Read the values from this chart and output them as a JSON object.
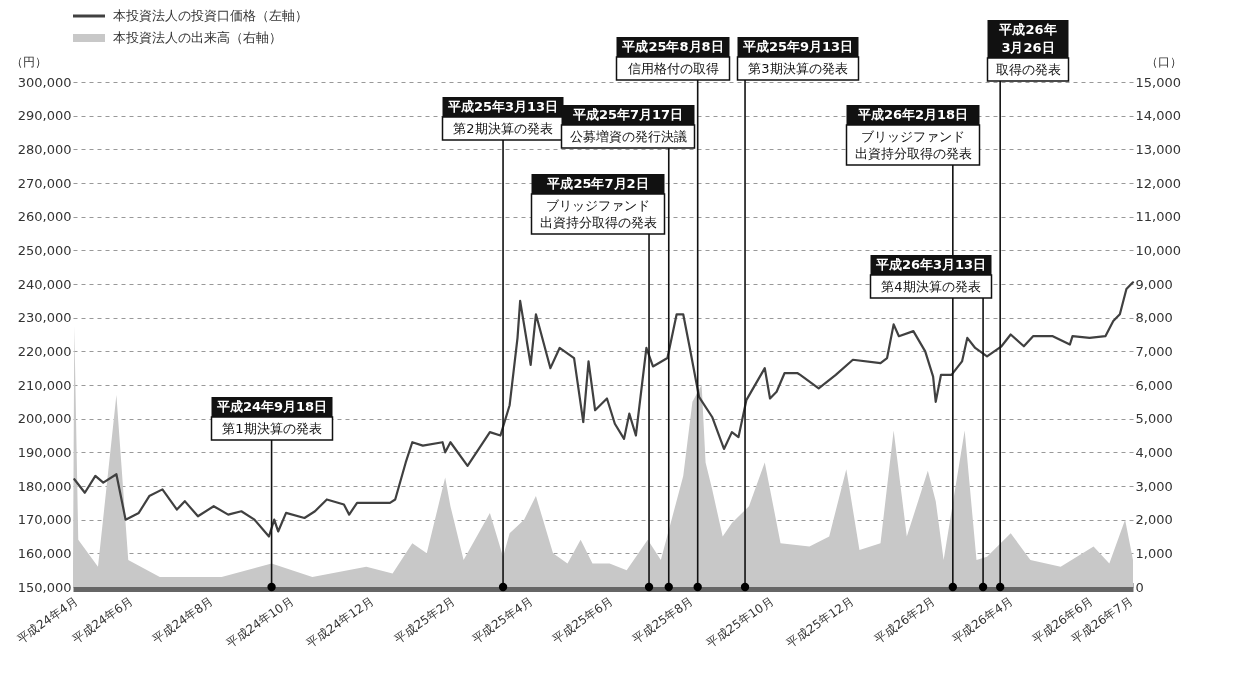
{
  "chart_data": {
    "type": "line",
    "ylabel": "（円）",
    "y2label": "（口）",
    "grid": "y",
    "legend": "top left",
    "xlim": [
      "2012-04-20",
      "2014-07-05"
    ],
    "xticks": [
      {
        "value": "2012-04-20",
        "label": "平成24年4月"
      },
      {
        "value": "2012-06-01",
        "label": "平成24年6月"
      },
      {
        "value": "2012-08-01",
        "label": "平成24年8月"
      },
      {
        "value": "2012-10-01",
        "label": "平成24年10月"
      },
      {
        "value": "2012-12-01",
        "label": "平成24年12月"
      },
      {
        "value": "2013-02-01",
        "label": "平成25年2月"
      },
      {
        "value": "2013-04-01",
        "label": "平成25年4月"
      },
      {
        "value": "2013-06-01",
        "label": "平成25年6月"
      },
      {
        "value": "2013-08-01",
        "label": "平成25年8月"
      },
      {
        "value": "2013-10-01",
        "label": "平成25年10月"
      },
      {
        "value": "2013-12-01",
        "label": "平成25年12月"
      },
      {
        "value": "2014-02-01",
        "label": "平成26年2月"
      },
      {
        "value": "2014-04-01",
        "label": "平成26年4月"
      },
      {
        "value": "2014-06-01",
        "label": "平成26年6月"
      },
      {
        "value": "2014-07-01",
        "label": "平成26年7月"
      }
    ],
    "ylim": [
      150000,
      300000
    ],
    "yticks": [
      {
        "value": 150000,
        "label": "150,000"
      },
      {
        "value": 160000,
        "label": "160,000"
      },
      {
        "value": 170000,
        "label": "170,000"
      },
      {
        "value": 180000,
        "label": "180,000"
      },
      {
        "value": 190000,
        "label": "190,000"
      },
      {
        "value": 200000,
        "label": "200,000"
      },
      {
        "value": 210000,
        "label": "210,000"
      },
      {
        "value": 220000,
        "label": "220,000"
      },
      {
        "value": 230000,
        "label": "230,000"
      },
      {
        "value": 240000,
        "label": "240,000"
      },
      {
        "value": 250000,
        "label": "250,000"
      },
      {
        "value": 260000,
        "label": "260,000"
      },
      {
        "value": 270000,
        "label": "270,000"
      },
      {
        "value": 280000,
        "label": "280,000"
      },
      {
        "value": 290000,
        "label": "290,000"
      },
      {
        "value": 300000,
        "label": "300,000"
      }
    ],
    "y2lim": [
      0,
      15000
    ],
    "y2ticks": [
      {
        "value": 0,
        "label": "0"
      },
      {
        "value": 1000,
        "label": "1,000"
      },
      {
        "value": 2000,
        "label": "2,000"
      },
      {
        "value": 3000,
        "label": "3,000"
      },
      {
        "value": 4000,
        "label": "4,000"
      },
      {
        "value": 5000,
        "label": "5,000"
      },
      {
        "value": 6000,
        "label": "6,000"
      },
      {
        "value": 7000,
        "label": "7,000"
      },
      {
        "value": 8000,
        "label": "8,000"
      },
      {
        "value": 9000,
        "label": "9,000"
      },
      {
        "value": 10000,
        "label": "10,000"
      },
      {
        "value": 11000,
        "label": "11,000"
      },
      {
        "value": 12000,
        "label": "12,000"
      },
      {
        "value": 13000,
        "label": "13,000"
      },
      {
        "value": 14000,
        "label": "14,000"
      },
      {
        "value": 15000,
        "label": "15,000"
      }
    ],
    "series": [
      {
        "name": "本投資法人の投資口価格（左軸）",
        "color": "#404040",
        "x": [
          "2012-04-21",
          "2012-04-29",
          "2012-05-07",
          "2012-05-13",
          "2012-05-23",
          "2012-05-30",
          "2012-06-09",
          "2012-06-17",
          "2012-06-27",
          "2012-07-08",
          "2012-07-14",
          "2012-07-24",
          "2012-08-05",
          "2012-08-16",
          "2012-08-26",
          "2012-09-05",
          "2012-09-16",
          "2012-09-20",
          "2012-09-23",
          "2012-09-29",
          "2012-10-13",
          "2012-10-21",
          "2012-10-30",
          "2012-11-12",
          "2012-11-16",
          "2012-11-22",
          "2012-12-17",
          "2012-12-21",
          "2012-12-29",
          "2013-01-03",
          "2013-01-11",
          "2013-01-26",
          "2013-01-28",
          "2013-02-01",
          "2013-02-14",
          "2013-03-03",
          "2013-03-11",
          "2013-03-18",
          "2013-03-24",
          "2013-03-26",
          "2013-04-03",
          "2013-04-07",
          "2013-04-18",
          "2013-04-25",
          "2013-05-06",
          "2013-05-13",
          "2013-05-17",
          "2013-05-22",
          "2013-05-31",
          "2013-06-06",
          "2013-06-13",
          "2013-06-17",
          "2013-06-22",
          "2013-06-30",
          "2013-07-05",
          "2013-07-16",
          "2013-07-23",
          "2013-07-28",
          "2013-08-02",
          "2013-08-09",
          "2013-08-19",
          "2013-08-28",
          "2013-09-03",
          "2013-09-08",
          "2013-09-14",
          "2013-09-28",
          "2013-10-02",
          "2013-10-07",
          "2013-10-13",
          "2013-10-23",
          "2013-10-25",
          "2013-11-08",
          "2013-11-21",
          "2013-12-04",
          "2013-12-25",
          "2013-12-30",
          "2014-01-04",
          "2014-01-08",
          "2014-01-19",
          "2014-01-28",
          "2014-02-03",
          "2014-02-05",
          "2014-02-09",
          "2014-02-17",
          "2014-02-25",
          "2014-03-01",
          "2014-03-07",
          "2014-03-16",
          "2014-03-27",
          "2014-04-03",
          "2014-04-13",
          "2014-04-20",
          "2014-05-05",
          "2014-05-18",
          "2014-05-20",
          "2014-06-02",
          "2014-06-14",
          "2014-06-20",
          "2014-06-25",
          "2014-06-30",
          "2014-07-05"
        ],
        "values": [
          182000,
          178000,
          183000,
          181000,
          183500,
          170000,
          172000,
          177000,
          179000,
          173000,
          175500,
          171000,
          174000,
          171500,
          172500,
          170000,
          165000,
          170000,
          166500,
          172000,
          170500,
          172500,
          176000,
          174500,
          171500,
          175000,
          175000,
          176000,
          187000,
          193000,
          192000,
          193000,
          190000,
          193000,
          186000,
          196000,
          195000,
          204000,
          224000,
          235000,
          216000,
          231000,
          215000,
          221000,
          218000,
          199000,
          217000,
          202500,
          206000,
          198500,
          194000,
          201500,
          195000,
          221000,
          215500,
          218000,
          231000,
          231000,
          221000,
          206500,
          200500,
          191000,
          196000,
          194500,
          205500,
          215000,
          206000,
          208000,
          213500,
          213500,
          213000,
          209000,
          213000,
          217500,
          216500,
          218000,
          228000,
          224500,
          226000,
          220000,
          212500,
          205000,
          213000,
          213000,
          217000,
          224000,
          221000,
          218500,
          221500,
          225000,
          221500,
          224500,
          224500,
          222000,
          224500,
          224000,
          224500,
          229000,
          231000,
          238500,
          240500
        ]
      },
      {
        "name": "本投資法人の出来高（右軸）",
        "type": "area",
        "axis": "y2",
        "color": "#c8c8c8",
        "x": [
          "2012-04-20",
          "2012-04-21",
          "2012-04-24",
          "2012-05-09",
          "2012-05-23",
          "2012-06-01",
          "2012-06-25",
          "2012-08-11",
          "2012-09-18",
          "2012-10-19",
          "2012-11-29",
          "2012-12-19",
          "2013-01-03",
          "2013-01-14",
          "2013-01-28",
          "2013-02-01",
          "2013-02-11",
          "2013-03-03",
          "2013-03-13",
          "2013-03-18",
          "2013-03-29",
          "2013-04-07",
          "2013-04-20",
          "2013-05-01",
          "2013-05-11",
          "2013-05-20",
          "2013-06-02",
          "2013-06-15",
          "2013-07-01",
          "2013-07-11",
          "2013-07-28",
          "2013-08-04",
          "2013-08-11",
          "2013-08-14",
          "2013-08-19",
          "2013-08-27",
          "2013-09-03",
          "2013-09-16",
          "2013-09-28",
          "2013-10-10",
          "2013-11-01",
          "2013-11-16",
          "2013-11-29",
          "2013-12-09",
          "2013-12-25",
          "2014-01-04",
          "2014-01-14",
          "2014-01-30",
          "2014-02-05",
          "2014-02-11",
          "2014-02-27",
          "2014-03-08",
          "2014-03-16",
          "2014-04-03",
          "2014-04-18",
          "2014-05-11",
          "2014-06-05",
          "2014-06-17",
          "2014-06-29",
          "2014-07-05"
        ],
        "values": [
          500,
          7750,
          1400,
          600,
          5700,
          800,
          300,
          300,
          700,
          300,
          600,
          400,
          1300,
          1000,
          3250,
          2400,
          800,
          2200,
          900,
          1600,
          2000,
          2700,
          1000,
          700,
          1400,
          700,
          700,
          500,
          1400,
          800,
          3300,
          5500,
          6000,
          3700,
          2900,
          1500,
          1900,
          2400,
          3700,
          1300,
          1200,
          1500,
          3500,
          1100,
          1300,
          4650,
          1500,
          3450,
          2550,
          800,
          4650,
          800,
          900,
          1600,
          800,
          600,
          1200,
          700,
          2000,
          800
        ]
      }
    ],
    "annotations": [
      "平成24年9月18日",
      {
        "text": "第1期決算の発表",
        "x": "2012-09-18",
        "y": 150000
      },
      "平成25年3月13日",
      {
        "text": "第2期決算の発表",
        "x": "2013-03-13",
        "y": 150000
      },
      "平成25年7月2日",
      {
        "text": "ブリッジファンド出資持分取得の発表",
        "x": "2013-07-02",
        "y": 150000
      },
      "平成25年7月17日",
      {
        "text": "公募増資の発行決議",
        "x": "2013-07-17",
        "y": 150000
      },
      "平成25年8月8日",
      {
        "text": "信用格付の取得",
        "x": "2013-08-08",
        "y": 150000
      },
      "平成25年9月13日",
      {
        "text": "第3期決算の発表",
        "x": "2013-09-13",
        "y": 150000
      },
      "平成26年2月18日",
      {
        "text": "ブリッジファンド出資持分取得の発表",
        "x": "2014-02-18",
        "y": 150000
      },
      "平成26年3月13日",
      {
        "text": "第4期決算の発表",
        "x": "2014-03-13",
        "y": 150000
      },
      "平成26年3月26日",
      {
        "text": "取得の発表",
        "x": "2014-03-26",
        "y": 150000
      }
    ]
  }
}
